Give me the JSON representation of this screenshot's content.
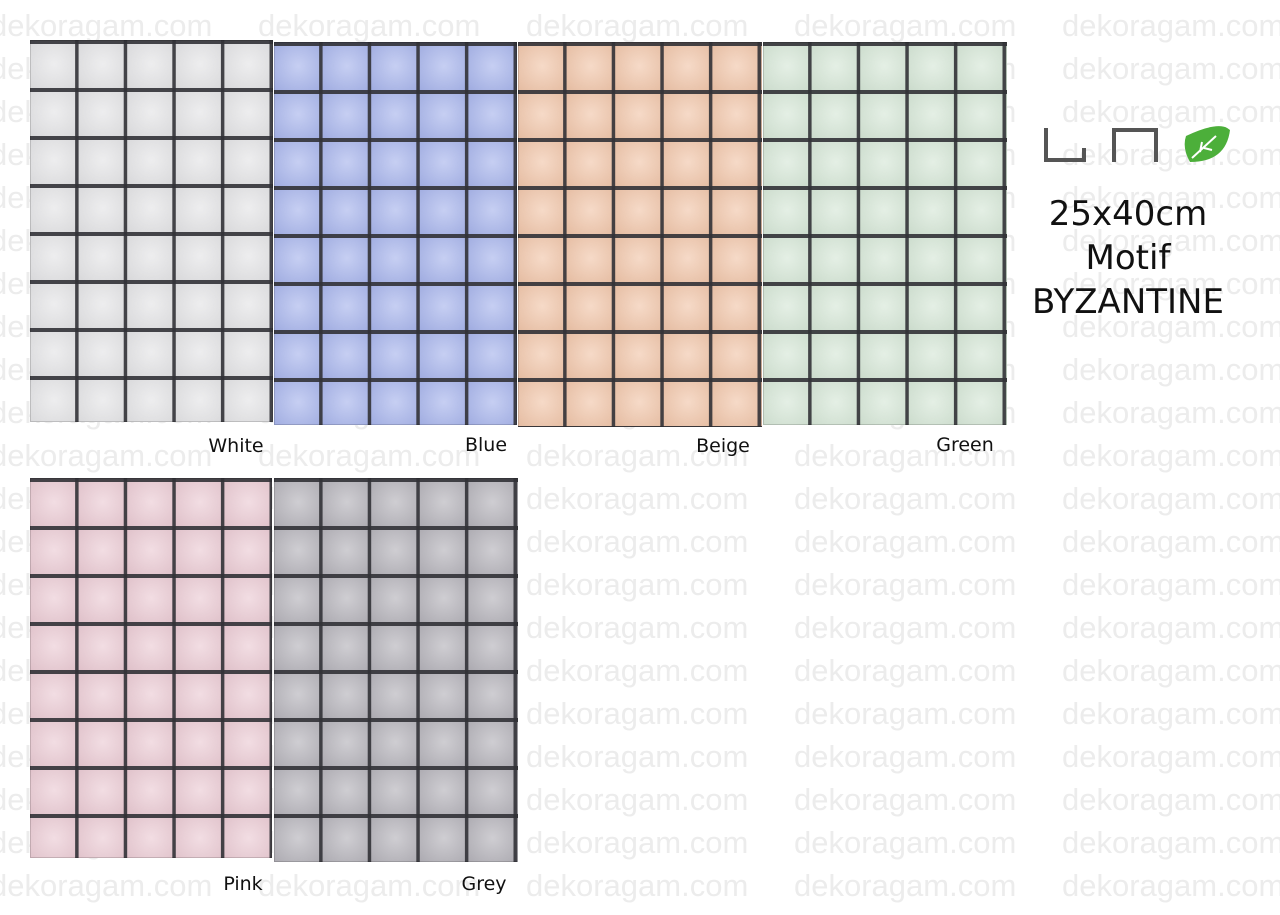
{
  "watermark": "dekoragam.com",
  "product": {
    "size": "25x40cm",
    "kind": "Motif",
    "name": "BYZANTINE"
  },
  "tiles": [
    {
      "label": "White",
      "color": "#e4e4e6"
    },
    {
      "label": "Blue",
      "color": "#a8b5ec"
    },
    {
      "label": "Beige",
      "color": "#f1c6aa"
    },
    {
      "label": "Green",
      "color": "#d6e7d7"
    },
    {
      "label": "Pink",
      "color": "#ebcbd4"
    },
    {
      "label": "Grey",
      "color": "#b5b3ba"
    }
  ]
}
